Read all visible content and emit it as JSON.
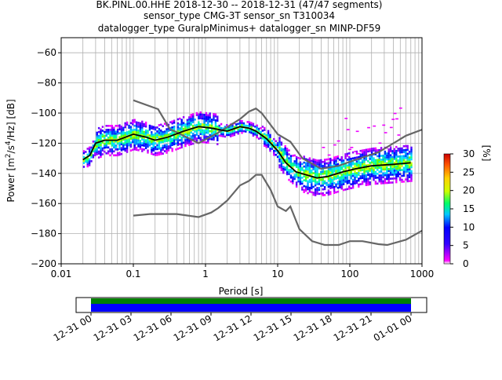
{
  "title": {
    "line1": "BK.PINL.00.HHE   2018-12-30 -- 2018-12-31  (47/47 segments)",
    "line2": "sensor_type CMG-3T sensor_sn T310034",
    "line3": "datalogger_type GuralpMinimus+ datalogger_sn MINP-DF59"
  },
  "colors": {
    "nhnm_nlnm": "#666666",
    "mode_line": "#000000",
    "grid": "#b0b0b0",
    "coverage_green": "#008000",
    "coverage_blue": "#0000ff"
  },
  "chart_data": {
    "type": "heatmap",
    "xlabel": "Period [s]",
    "ylabel": "Power [m²/s⁴/Hz] [dB]",
    "ylabel_main": "Power [m",
    "ylabel_sup1": "2",
    "ylabel_mid": "/s",
    "ylabel_sup2": "4",
    "ylabel_end": "/Hz] [dB]",
    "xscale": "log",
    "xlim": [
      0.01,
      1000
    ],
    "ylim": [
      -200,
      -50
    ],
    "xticks": [
      {
        "v": 0.01,
        "label": "0.01"
      },
      {
        "v": 0.1,
        "label": "0.1"
      },
      {
        "v": 1,
        "label": "1"
      },
      {
        "v": 10,
        "label": "10"
      },
      {
        "v": 100,
        "label": "100"
      },
      {
        "v": 1000,
        "label": "1000"
      }
    ],
    "yticks": [
      -60,
      -80,
      -100,
      -120,
      -140,
      -160,
      -180,
      -200
    ],
    "grid": true,
    "colorbar": {
      "label": "[%]",
      "range": [
        0,
        30
      ],
      "ticks": [
        0,
        5,
        10,
        15,
        20,
        25,
        30
      ]
    },
    "noise_model_high": [
      [
        0.1,
        -91.5
      ],
      [
        0.22,
        -97.4
      ],
      [
        0.32,
        -110.5
      ],
      [
        0.8,
        -120
      ],
      [
        1.5,
        -113
      ],
      [
        3,
        -104
      ],
      [
        4,
        -99
      ],
      [
        5,
        -97
      ],
      [
        6,
        -100
      ],
      [
        10,
        -114
      ],
      [
        15,
        -119
      ],
      [
        22,
        -130
      ],
      [
        40,
        -137
      ],
      [
        70,
        -135
      ],
      [
        120,
        -131
      ],
      [
        250,
        -126
      ],
      [
        600,
        -115
      ],
      [
        1000,
        -111
      ]
    ],
    "noise_model_low": [
      [
        0.1,
        -168
      ],
      [
        0.17,
        -167
      ],
      [
        0.4,
        -167
      ],
      [
        0.8,
        -169
      ],
      [
        1.2,
        -166
      ],
      [
        1.5,
        -163
      ],
      [
        2,
        -158
      ],
      [
        3,
        -148
      ],
      [
        4,
        -145
      ],
      [
        5,
        -141
      ],
      [
        6,
        -141
      ],
      [
        8,
        -151
      ],
      [
        10,
        -162
      ],
      [
        13,
        -165
      ],
      [
        15,
        -162
      ],
      [
        20,
        -177
      ],
      [
        30,
        -185
      ],
      [
        45,
        -187.5
      ],
      [
        70,
        -187.5
      ],
      [
        100,
        -185
      ],
      [
        150,
        -185
      ],
      [
        250,
        -187
      ],
      [
        330,
        -187.5
      ],
      [
        600,
        -184
      ],
      [
        1000,
        -178
      ]
    ],
    "mode": [
      [
        0.02,
        -131
      ],
      [
        0.025,
        -128
      ],
      [
        0.03,
        -120
      ],
      [
        0.04,
        -118
      ],
      [
        0.06,
        -118
      ],
      [
        0.1,
        -114
      ],
      [
        0.15,
        -116
      ],
      [
        0.2,
        -118
      ],
      [
        0.3,
        -116
      ],
      [
        0.5,
        -112
      ],
      [
        0.8,
        -109
      ],
      [
        1.2,
        -110
      ],
      [
        2,
        -112
      ],
      [
        3,
        -109
      ],
      [
        4,
        -110
      ],
      [
        5,
        -112
      ],
      [
        7,
        -117
      ],
      [
        10,
        -125
      ],
      [
        13,
        -133
      ],
      [
        18,
        -139
      ],
      [
        25,
        -141
      ],
      [
        35,
        -143
      ],
      [
        50,
        -142
      ],
      [
        80,
        -139
      ],
      [
        120,
        -137
      ],
      [
        200,
        -135
      ],
      [
        400,
        -134
      ],
      [
        700,
        -133
      ]
    ],
    "coverage": {
      "xticks": [
        "12-31 00",
        "12-31 03",
        "12-31 06",
        "12-31 09",
        "12-31 12",
        "12-31 15",
        "12-31 18",
        "12-31 21",
        "01-01 00"
      ]
    }
  }
}
